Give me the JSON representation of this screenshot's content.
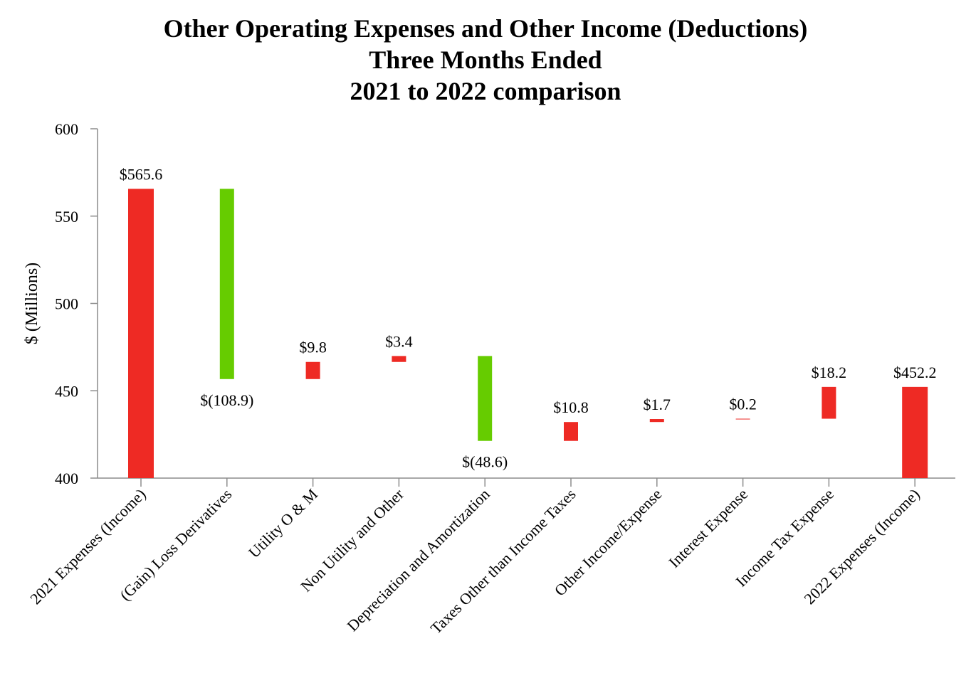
{
  "chart_data": {
    "type": "waterfall",
    "title_lines": [
      "Other Operating Expenses and Other Income (Deductions)",
      "Three Months Ended",
      "2021 to 2022 comparison"
    ],
    "ylabel": "$ (Millions)",
    "xlabel": "",
    "ylim": [
      400,
      600
    ],
    "yticks": [
      400,
      450,
      500,
      550,
      600
    ],
    "grid": false,
    "legend": "none",
    "categories": [
      "2021 Expenses (Income)",
      "(Gain) Loss Derivatives",
      "Utility O & M",
      "Non Utility and Other",
      "Depreciation and Amortization",
      "Taxes Other than Income Taxes",
      "Other Income/Expense",
      "Interest Expense",
      "Income Tax Expense",
      "2022 Expenses (Income)"
    ],
    "bars": [
      {
        "kind": "total",
        "value": 565.6,
        "label": "$565.6"
      },
      {
        "kind": "change",
        "value": -108.9,
        "label": "$(108.9)"
      },
      {
        "kind": "change",
        "value": 9.8,
        "label": "$9.8"
      },
      {
        "kind": "change",
        "value": 3.4,
        "label": "$3.4"
      },
      {
        "kind": "change",
        "value": -48.6,
        "label": "$(48.6)"
      },
      {
        "kind": "change",
        "value": 10.8,
        "label": "$10.8"
      },
      {
        "kind": "change",
        "value": 1.7,
        "label": "$1.7"
      },
      {
        "kind": "change",
        "value": 0.2,
        "label": "$0.2"
      },
      {
        "kind": "change",
        "value": 18.2,
        "label": "$18.2"
      },
      {
        "kind": "total",
        "value": 452.2,
        "label": "$452.2"
      }
    ],
    "colors": {
      "increase": "#ee2a24",
      "decrease": "#66cc00",
      "total": "#ee2a24",
      "axis": "#8c8c8c"
    }
  }
}
